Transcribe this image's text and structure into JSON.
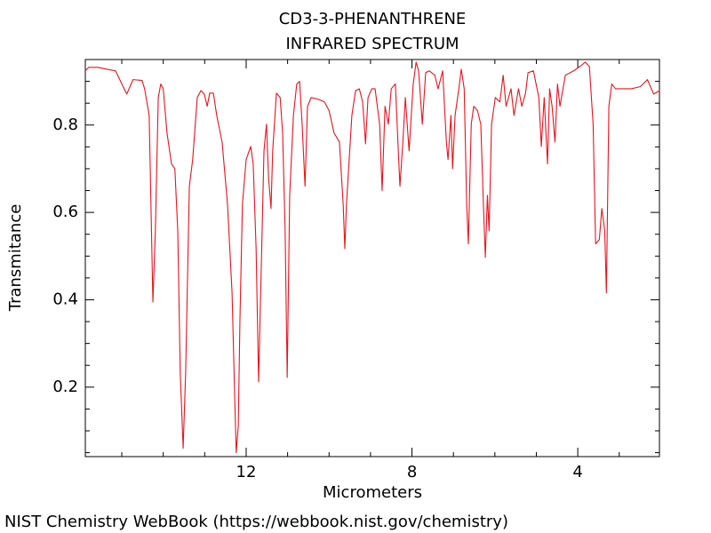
{
  "chart_data": {
    "type": "line",
    "title": "CD3-3-PHENANTHRENE",
    "subtitle": "INFRARED SPECTRUM",
    "xlabel": "Micrometers",
    "ylabel": "Transmitance",
    "source": "NIST Chemistry WebBook (https://webbook.nist.gov/chemistry)",
    "color": "#e8141c",
    "xlim": [
      15.88,
      2.03
    ],
    "xticks": [
      12,
      8,
      4
    ],
    "xminorticks": [
      15,
      14,
      13,
      11,
      10,
      9,
      7,
      6,
      5,
      3
    ],
    "ylim": [
      0.041,
      0.95
    ],
    "yticks": [
      0.2,
      0.4,
      0.6,
      0.8
    ],
    "yminorticks": [
      0.05,
      0.1,
      0.15,
      0.25,
      0.3,
      0.35,
      0.45,
      0.5,
      0.55,
      0.65,
      0.7,
      0.75,
      0.85,
      0.9
    ],
    "x": [
      15.88,
      15.8,
      15.58,
      15.37,
      15.15,
      15.0,
      14.88,
      14.73,
      14.51,
      14.45,
      14.34,
      14.25,
      14.19,
      14.12,
      14.06,
      14.0,
      13.91,
      13.8,
      13.72,
      13.65,
      13.59,
      13.52,
      13.46,
      13.37,
      13.29,
      13.18,
      13.09,
      13.01,
      12.94,
      12.88,
      12.79,
      12.71,
      12.58,
      12.45,
      12.34,
      12.28,
      12.24,
      12.19,
      12.15,
      12.09,
      12.0,
      11.89,
      11.83,
      11.76,
      11.7,
      11.64,
      11.57,
      11.51,
      11.46,
      11.4,
      11.36,
      11.27,
      11.18,
      11.12,
      11.06,
      11.01,
      10.95,
      10.86,
      10.78,
      10.71,
      10.65,
      10.58,
      10.52,
      10.43,
      10.26,
      10.11,
      10.0,
      9.88,
      9.75,
      9.66,
      9.62,
      9.58,
      9.45,
      9.36,
      9.27,
      9.19,
      9.12,
      9.06,
      8.97,
      8.89,
      8.78,
      8.72,
      8.65,
      8.57,
      8.5,
      8.4,
      8.33,
      8.29,
      8.22,
      8.16,
      8.07,
      8.03,
      7.97,
      7.9,
      7.84,
      7.75,
      7.67,
      7.58,
      7.45,
      7.37,
      7.26,
      7.17,
      7.13,
      7.06,
      7.02,
      6.96,
      6.87,
      6.81,
      6.74,
      6.68,
      6.64,
      6.57,
      6.51,
      6.42,
      6.34,
      6.27,
      6.23,
      6.18,
      6.14,
      6.08,
      5.99,
      5.88,
      5.8,
      5.73,
      5.67,
      5.61,
      5.54,
      5.43,
      5.35,
      5.26,
      5.2,
      5.07,
      4.94,
      4.88,
      4.81,
      4.73,
      4.68,
      4.62,
      4.55,
      4.49,
      4.43,
      4.3,
      4.1,
      3.95,
      3.82,
      3.72,
      3.63,
      3.57,
      3.48,
      3.42,
      3.35,
      3.31,
      3.25,
      3.18,
      3.09,
      2.92,
      2.71,
      2.49,
      2.32,
      2.17,
      2.02
    ],
    "values": [
      0.924,
      0.932,
      0.932,
      0.928,
      0.924,
      0.894,
      0.871,
      0.904,
      0.902,
      0.883,
      0.822,
      0.395,
      0.558,
      0.863,
      0.894,
      0.883,
      0.782,
      0.711,
      0.7,
      0.558,
      0.233,
      0.06,
      0.233,
      0.66,
      0.721,
      0.863,
      0.879,
      0.871,
      0.843,
      0.873,
      0.873,
      0.822,
      0.761,
      0.619,
      0.416,
      0.192,
      0.05,
      0.111,
      0.355,
      0.619,
      0.721,
      0.751,
      0.711,
      0.517,
      0.212,
      0.456,
      0.741,
      0.802,
      0.68,
      0.609,
      0.741,
      0.873,
      0.863,
      0.782,
      0.558,
      0.222,
      0.639,
      0.822,
      0.894,
      0.9,
      0.802,
      0.66,
      0.843,
      0.863,
      0.859,
      0.853,
      0.833,
      0.782,
      0.761,
      0.619,
      0.517,
      0.619,
      0.822,
      0.879,
      0.883,
      0.853,
      0.757,
      0.863,
      0.883,
      0.883,
      0.802,
      0.65,
      0.843,
      0.802,
      0.883,
      0.894,
      0.741,
      0.66,
      0.761,
      0.863,
      0.741,
      0.802,
      0.894,
      0.944,
      0.924,
      0.802,
      0.92,
      0.924,
      0.914,
      0.883,
      0.924,
      0.761,
      0.721,
      0.822,
      0.7,
      0.822,
      0.883,
      0.928,
      0.883,
      0.619,
      0.528,
      0.802,
      0.843,
      0.833,
      0.802,
      0.599,
      0.497,
      0.639,
      0.558,
      0.802,
      0.863,
      0.853,
      0.914,
      0.843,
      0.863,
      0.883,
      0.822,
      0.883,
      0.843,
      0.873,
      0.92,
      0.924,
      0.863,
      0.751,
      0.863,
      0.711,
      0.883,
      0.843,
      0.761,
      0.894,
      0.843,
      0.914,
      0.924,
      0.934,
      0.944,
      0.934,
      0.802,
      0.528,
      0.538,
      0.609,
      0.558,
      0.416,
      0.843,
      0.894,
      0.883,
      0.883,
      0.883,
      0.888,
      0.904,
      0.871,
      0.879
    ]
  }
}
